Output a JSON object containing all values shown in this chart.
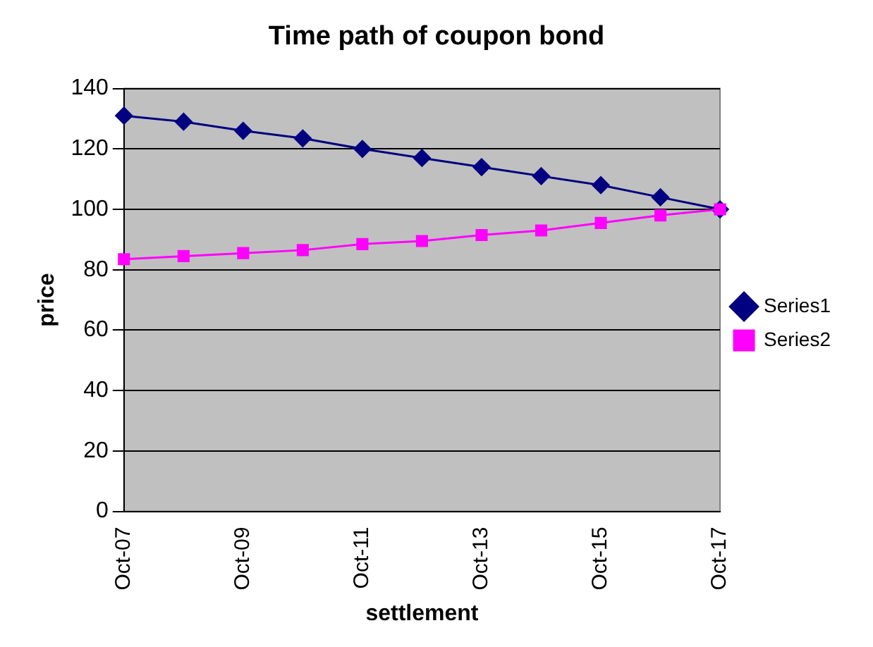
{
  "chart_data": {
    "type": "line",
    "title": "Time path of coupon bond",
    "xlabel": "settlement",
    "ylabel": "price",
    "categories": [
      "Oct-07",
      null,
      "Oct-09",
      null,
      "Oct-11",
      null,
      "Oct-13",
      null,
      "Oct-15",
      null,
      "Oct-17"
    ],
    "series": [
      {
        "name": "Series1",
        "color": "#000080",
        "marker": "diamond",
        "values": [
          131,
          129,
          126,
          123.5,
          120,
          117,
          114,
          111,
          108,
          104,
          100
        ]
      },
      {
        "name": "Series2",
        "color": "#ff00ff",
        "marker": "square",
        "values": [
          83.5,
          84.5,
          85.5,
          86.5,
          88.5,
          89.5,
          91.5,
          93,
          95.5,
          98,
          100
        ]
      }
    ],
    "ylim": [
      0,
      140
    ],
    "yticks": [
      0,
      20,
      40,
      60,
      80,
      100,
      120,
      140
    ],
    "grid": "y",
    "legend": "right",
    "line_style": "solid"
  }
}
